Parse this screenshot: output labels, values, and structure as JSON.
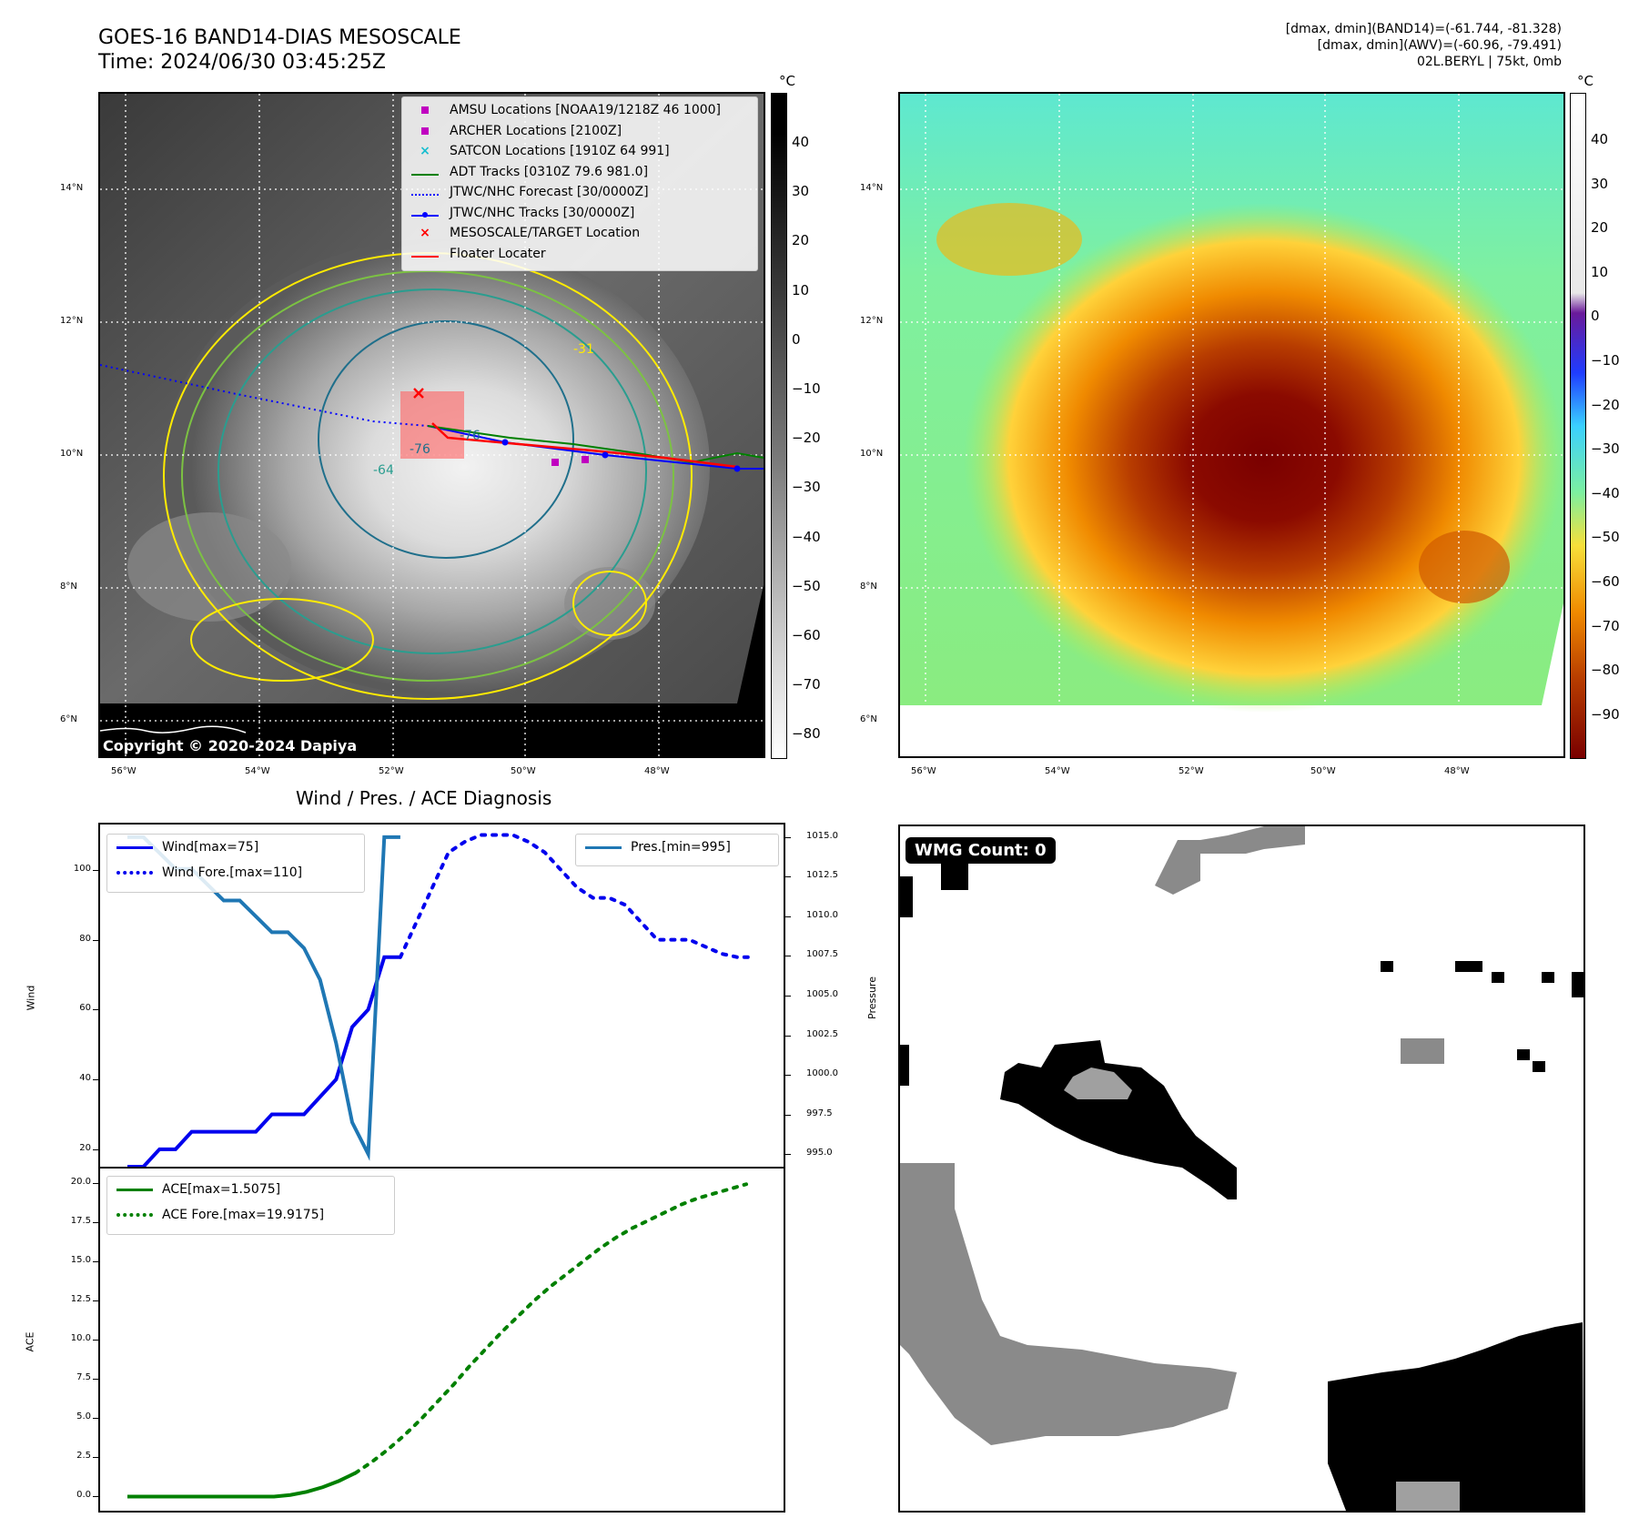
{
  "header": {
    "title_line1": "GOES-16 BAND14-DIAS MESOSCALE",
    "title_line2": "Time: 2024/06/30 03:45:25Z",
    "info_line1": "[dmax, dmin](BAND14)=(-61.744, -81.328)",
    "info_line2": "[dmax, dmin](AWV)=(-60.96, -79.491)",
    "info_line3": "02L.BERYL | 75kt, 0mb"
  },
  "map_axes": {
    "lat_labels": [
      "14°N",
      "12°N",
      "10°N",
      "8°N",
      "6°N"
    ],
    "lon_labels": [
      "56°W",
      "54°W",
      "52°W",
      "50°W",
      "48°W"
    ]
  },
  "ir_panel": {
    "copyright": "Copyright © 2020-2024 Dapiya",
    "colorbar_unit": "°C",
    "colorbar_ticks": [
      "40",
      "30",
      "20",
      "10",
      "0",
      "−10",
      "−20",
      "−30",
      "−40",
      "−50",
      "−60",
      "−70",
      "−80"
    ],
    "legend": [
      {
        "label": "AMSU Locations [NOAA19/1218Z 46 1000]",
        "color": "#c000c0",
        "marker": "square"
      },
      {
        "label": "ARCHER Locations [2100Z]",
        "color": "#c000c0",
        "marker": "square"
      },
      {
        "label": "SATCON Locations [1910Z 64 991]",
        "color": "#17becf",
        "marker": "x"
      },
      {
        "label": "ADT Tracks [0310Z 79.6 981.0]",
        "color": "#008000",
        "marker": "line"
      },
      {
        "label": "JTWC/NHC Forecast [30/0000Z]",
        "color": "#0000ff",
        "marker": "dotted"
      },
      {
        "label": "JTWC/NHC Tracks [30/0000Z]",
        "color": "#0000ff",
        "marker": "line-dot"
      },
      {
        "label": "MESOSCALE/TARGET Location",
        "color": "#ff0000",
        "marker": "x"
      },
      {
        "label": "Floater Locater",
        "color": "#ff0000",
        "marker": "line"
      }
    ],
    "contour_labels": [
      "-31",
      "-64",
      "-76",
      "-76"
    ]
  },
  "awv_panel": {
    "colorbar_unit": "°C",
    "colorbar_ticks": [
      "40",
      "30",
      "20",
      "10",
      "0",
      "−10",
      "−20",
      "−30",
      "−40",
      "−50",
      "−60",
      "−70",
      "−80",
      "−90"
    ]
  },
  "wmg_panel": {
    "badge": "WMG Count: 0"
  },
  "chart_data": [
    {
      "type": "line",
      "title": "Wind / Pres. / ACE Diagnosis",
      "ylabel": "Wind",
      "ylabel_right": "Pressure",
      "ylim": [
        15,
        113
      ],
      "ylim_right": [
        994.2,
        1015.8
      ],
      "yticks": [
        20,
        40,
        60,
        80,
        100
      ],
      "yticks_right": [
        "995.0",
        "997.5",
        "1000.0",
        "1002.5",
        "1005.0",
        "1007.5",
        "1010.0",
        "1012.5",
        "1015.0"
      ],
      "x": [
        0,
        1,
        2,
        3,
        4,
        5,
        6,
        7,
        8,
        9,
        10,
        11,
        12,
        13,
        14,
        15,
        16,
        17,
        18,
        19,
        20,
        21,
        22,
        23,
        24,
        25,
        26,
        27,
        28,
        29,
        30,
        31,
        32,
        33,
        34,
        35,
        36,
        37,
        38,
        39
      ],
      "series": [
        {
          "name": "Wind[max=75]",
          "color": "#0000ee",
          "style": "solid",
          "axis": "left",
          "x": [
            0,
            1,
            2,
            3,
            4,
            5,
            6,
            7,
            8,
            9,
            10,
            11,
            12,
            13,
            14,
            15,
            16,
            17
          ],
          "values": [
            15,
            15,
            20,
            20,
            25,
            25,
            25,
            25,
            25,
            30,
            30,
            30,
            35,
            40,
            55,
            60,
            75,
            75
          ]
        },
        {
          "name": "Wind Fore.[max=110]",
          "color": "#0000ee",
          "style": "dotted",
          "axis": "left",
          "x": [
            17,
            18,
            19,
            20,
            21,
            22,
            23,
            24,
            25,
            26,
            27,
            28,
            29,
            30,
            31,
            32,
            33,
            34,
            35,
            36,
            37,
            38,
            39
          ],
          "values": [
            75,
            85,
            95,
            105,
            108,
            110,
            110,
            110,
            108,
            105,
            100,
            95,
            92,
            92,
            90,
            85,
            80,
            80,
            80,
            78,
            76,
            75,
            75
          ]
        },
        {
          "name": "Pres.[min=995]",
          "color": "#1f77b4",
          "style": "solid",
          "axis": "right",
          "x": [
            0,
            1,
            2,
            3,
            4,
            5,
            6,
            7,
            8,
            9,
            10,
            11,
            12,
            13,
            14,
            15,
            16,
            17
          ],
          "values": [
            1015,
            1015,
            1014,
            1013,
            1013,
            1012,
            1011,
            1011,
            1010,
            1009,
            1009,
            1008,
            1006,
            1002,
            997,
            995,
            1015,
            1015
          ]
        }
      ]
    },
    {
      "type": "line",
      "ylabel": "ACE",
      "ylim": [
        -0.9,
        20.9
      ],
      "yticks": [
        "0.0",
        "2.5",
        "5.0",
        "7.5",
        "10.0",
        "12.5",
        "15.0",
        "17.5",
        "20.0"
      ],
      "series": [
        {
          "name": "ACE[max=1.5075]",
          "color": "#008000",
          "style": "solid",
          "x": [
            0,
            2,
            4,
            6,
            8,
            10,
            12,
            14,
            16,
            18,
            20,
            22,
            24,
            26,
            28
          ],
          "values": [
            0,
            0,
            0,
            0,
            0,
            0,
            0,
            0,
            0,
            0,
            0.1,
            0.3,
            0.6,
            1.0,
            1.5
          ]
        },
        {
          "name": "ACE Fore.[max=19.9175]",
          "color": "#008000",
          "style": "dotted",
          "x": [
            28,
            30,
            32,
            34,
            36,
            38,
            40,
            42,
            44,
            46,
            48,
            50,
            52,
            54,
            56,
            58,
            60,
            62,
            64,
            66,
            68,
            70,
            72,
            74,
            76
          ],
          "values": [
            1.5,
            2.2,
            3.0,
            3.9,
            4.9,
            6.0,
            7.1,
            8.3,
            9.4,
            10.5,
            11.5,
            12.5,
            13.4,
            14.2,
            15.0,
            15.8,
            16.5,
            17.1,
            17.6,
            18.1,
            18.6,
            19.0,
            19.3,
            19.6,
            19.9
          ]
        }
      ]
    }
  ]
}
